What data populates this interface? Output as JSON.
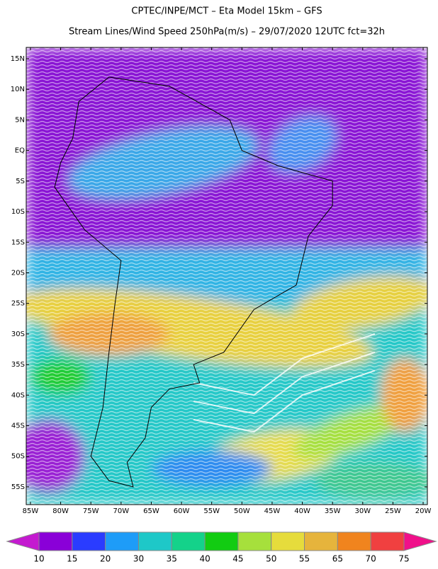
{
  "header": {
    "title": "CPTEC/INPE/MCT –  Eta Model 15km – GFS",
    "subtitle": "Stream Lines/Wind Speed 250hPa(m/s) – 29/07/2020 12UTC fct=32h"
  },
  "map": {
    "xlim": [
      -85.7,
      -19.3
    ],
    "ylim": [
      -57.9,
      16.85
    ],
    "xticks": [
      {
        "value": -85,
        "label": "85W"
      },
      {
        "value": -80,
        "label": "80W"
      },
      {
        "value": -75,
        "label": "75W"
      },
      {
        "value": -70,
        "label": "70W"
      },
      {
        "value": -65,
        "label": "65W"
      },
      {
        "value": -60,
        "label": "60W"
      },
      {
        "value": -55,
        "label": "55W"
      },
      {
        "value": -50,
        "label": "50W"
      },
      {
        "value": -45,
        "label": "45W"
      },
      {
        "value": -40,
        "label": "40W"
      },
      {
        "value": -35,
        "label": "35W"
      },
      {
        "value": -30,
        "label": "30W"
      },
      {
        "value": -25,
        "label": "25W"
      },
      {
        "value": -20,
        "label": "20W"
      }
    ],
    "yticks": [
      {
        "value": 15,
        "label": "15N"
      },
      {
        "value": 10,
        "label": "10N"
      },
      {
        "value": 5,
        "label": "5N"
      },
      {
        "value": 0,
        "label": "EQ"
      },
      {
        "value": -5,
        "label": "5S"
      },
      {
        "value": -10,
        "label": "10S"
      },
      {
        "value": -15,
        "label": "15S"
      },
      {
        "value": -20,
        "label": "20S"
      },
      {
        "value": -25,
        "label": "25S"
      },
      {
        "value": -30,
        "label": "30S"
      },
      {
        "value": -35,
        "label": "35S"
      },
      {
        "value": -40,
        "label": "40S"
      },
      {
        "value": -45,
        "label": "45S"
      },
      {
        "value": -50,
        "label": "50S"
      },
      {
        "value": -55,
        "label": "55S"
      }
    ]
  },
  "colorbar": {
    "ticks": [
      10,
      15,
      20,
      30,
      35,
      40,
      45,
      50,
      55,
      65,
      70,
      75
    ],
    "colors": [
      "#c41ad0",
      "#8a00d8",
      "#2a3cff",
      "#1e9cf8",
      "#1ec8c8",
      "#14d28a",
      "#12cc12",
      "#a6e03c",
      "#e6dc3c",
      "#e6b43c",
      "#f0841e",
      "#f04040",
      "#f0108a"
    ]
  }
}
